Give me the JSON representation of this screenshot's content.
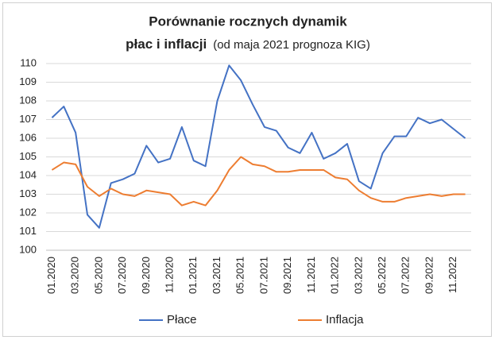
{
  "chart_data": {
    "type": "line",
    "title": "Porównanie rocznych dynamik",
    "title_line2": "płac i inflacji",
    "subtitle": "(od maja 2021 prognoza KIG)",
    "categories": [
      "01.2020",
      null,
      "03.2020",
      null,
      "05.2020",
      null,
      "07.2020",
      null,
      "09.2020",
      null,
      "11.2020",
      null,
      "01.2021",
      null,
      "03.2021",
      null,
      "05.2021",
      null,
      "07.2021",
      null,
      "09.2021",
      null,
      "11.2021",
      null,
      "01.2022",
      null,
      "03.2022",
      null,
      "05.2022",
      null,
      "07.2022",
      null,
      "09.2022",
      null,
      "11.2022",
      null
    ],
    "series": [
      {
        "name": "Płace",
        "color": "#4472c4",
        "values": [
          107.1,
          107.7,
          106.3,
          101.9,
          101.2,
          103.6,
          103.8,
          104.1,
          105.6,
          104.7,
          104.9,
          106.6,
          104.8,
          104.5,
          108.0,
          109.9,
          109.1,
          107.8,
          106.6,
          106.4,
          105.5,
          105.2,
          106.3,
          104.9,
          105.2,
          105.7,
          103.7,
          103.3,
          105.2,
          106.1,
          106.1,
          107.1,
          106.8,
          107.0,
          106.5,
          106.0
        ]
      },
      {
        "name": "Inflacja",
        "color": "#ed7d31",
        "values": [
          104.3,
          104.7,
          104.6,
          103.4,
          102.9,
          103.3,
          103.0,
          102.9,
          103.2,
          103.1,
          103.0,
          102.4,
          102.6,
          102.4,
          103.2,
          104.3,
          105.0,
          104.6,
          104.5,
          104.2,
          104.2,
          104.3,
          104.3,
          104.3,
          103.9,
          103.8,
          103.2,
          102.8,
          102.6,
          102.6,
          102.8,
          102.9,
          103.0,
          102.9,
          103.0,
          103.0
        ]
      }
    ],
    "ylim": [
      100,
      110
    ],
    "yticks": [
      100,
      101,
      102,
      103,
      104,
      105,
      106,
      107,
      108,
      109,
      110
    ],
    "grid": true,
    "legend": "bottom"
  }
}
